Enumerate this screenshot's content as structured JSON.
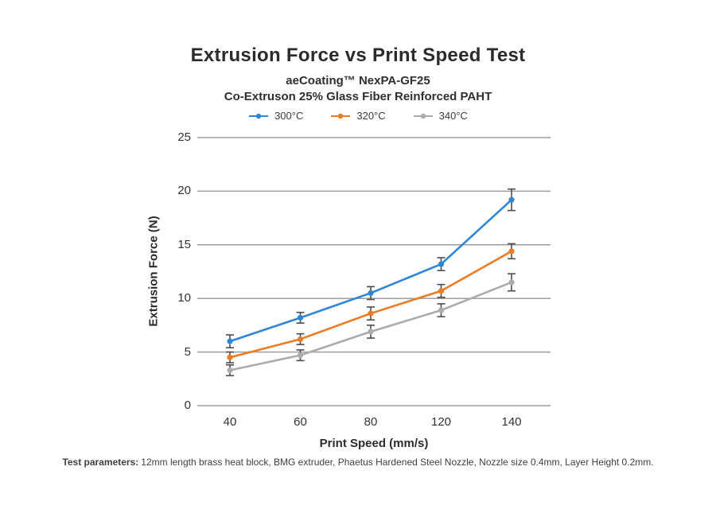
{
  "page": {
    "title": "Extrusion Force vs Print Speed Test",
    "subtitle1": "aeCoating™ NexPA-GF25",
    "subtitle2": "Co-Extruson 25% Glass Fiber Reinforced PAHT",
    "footer_label": "Test parameters:",
    "footer_text": "12mm length brass heat block, BMG extruder, Phaetus Hardened Steel Nozzle, Nozzle size 0.4mm, Layer Height 0.2mm."
  },
  "chart_data": {
    "type": "line",
    "title": "Extrusion Force vs Print Speed Test",
    "xlabel": "Print Speed (mm/s)",
    "ylabel": "Extrusion Force (N)",
    "categories": [
      "40",
      "60",
      "80",
      "120",
      "140"
    ],
    "ylim": [
      0,
      25
    ],
    "yticks": [
      0,
      5,
      10,
      15,
      20,
      25
    ],
    "grid": "horizontal",
    "legend_position": "top-center",
    "grid_color": "#9e9e9e",
    "error_bar_color": "#4d4d4d",
    "series": [
      {
        "name": "300°C",
        "color": "#2E86D9",
        "values": [
          6.0,
          8.2,
          10.5,
          13.2,
          19.2
        ],
        "errors": [
          0.6,
          0.5,
          0.6,
          0.6,
          1.0
        ]
      },
      {
        "name": "320°C",
        "color": "#EC7B23",
        "values": [
          4.5,
          6.2,
          8.6,
          10.7,
          14.4
        ],
        "errors": [
          0.5,
          0.5,
          0.6,
          0.6,
          0.7
        ]
      },
      {
        "name": "340°C",
        "color": "#ABABAB",
        "values": [
          3.3,
          4.7,
          6.9,
          8.9,
          11.5
        ],
        "errors": [
          0.5,
          0.5,
          0.6,
          0.6,
          0.8
        ]
      }
    ]
  }
}
